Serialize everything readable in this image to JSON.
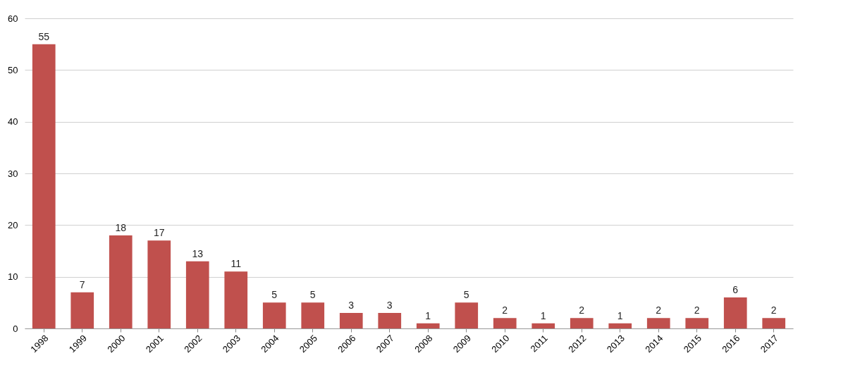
{
  "chart_data": {
    "type": "bar",
    "categories": [
      "1998",
      "1999",
      "2000",
      "2001",
      "2002",
      "2003",
      "2004",
      "2005",
      "2006",
      "2007",
      "2008",
      "2009",
      "2010",
      "2011",
      "2012",
      "2013",
      "2014",
      "2015",
      "2016",
      "2017"
    ],
    "values": [
      55,
      7,
      18,
      17,
      13,
      11,
      5,
      5,
      3,
      3,
      1,
      5,
      2,
      1,
      2,
      1,
      2,
      2,
      6,
      2
    ],
    "color": "#c0504d",
    "ylim": [
      0,
      60
    ],
    "yticks": [
      0,
      10,
      20,
      30,
      40,
      50,
      60
    ],
    "grid": "y",
    "data_labels": true
  }
}
